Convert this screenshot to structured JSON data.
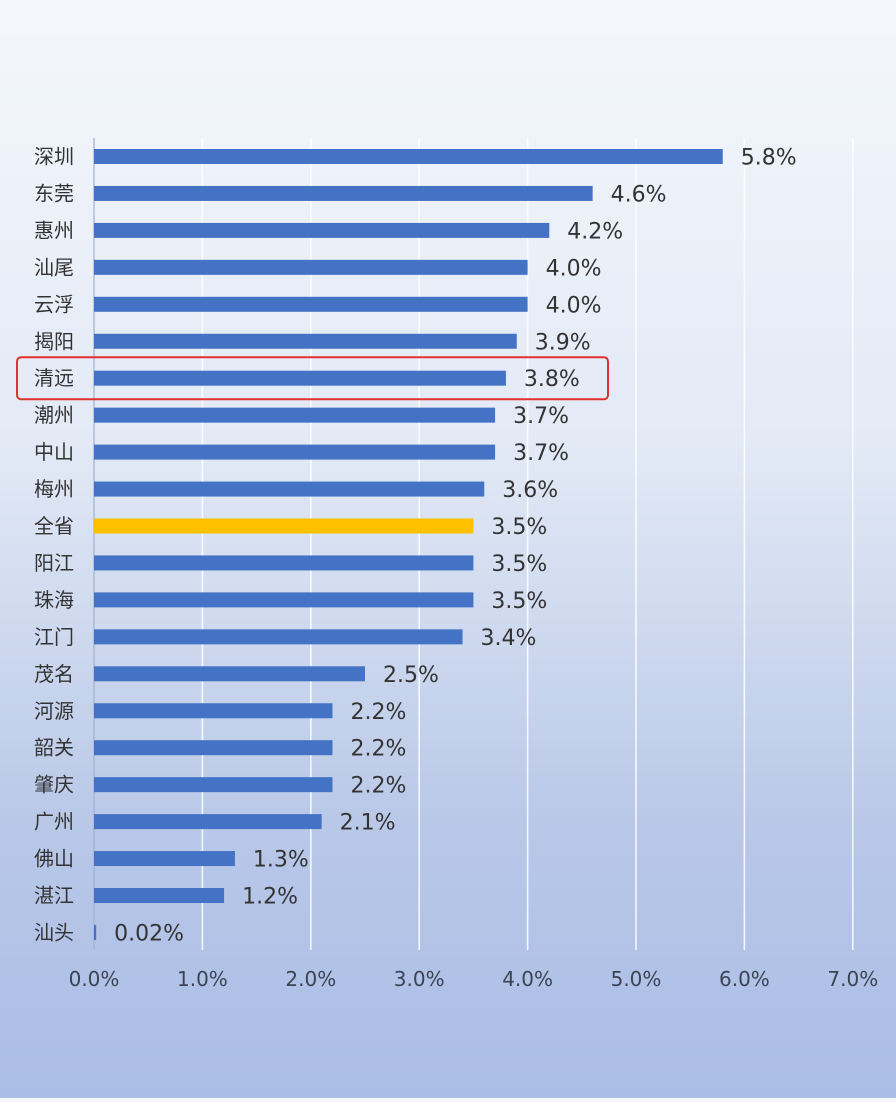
{
  "chart_data": {
    "type": "bar",
    "orientation": "horizontal",
    "categories": [
      "深圳",
      "东莞",
      "惠州",
      "汕尾",
      "云浮",
      "揭阳",
      "清远",
      "潮州",
      "中山",
      "梅州",
      "全省",
      "阳江",
      "珠海",
      "江门",
      "茂名",
      "河源",
      "韶关",
      "肇庆",
      "广州",
      "佛山",
      "湛江",
      "汕头"
    ],
    "values": [
      5.8,
      4.6,
      4.2,
      4.0,
      4.0,
      3.9,
      3.8,
      3.7,
      3.7,
      3.6,
      3.5,
      3.5,
      3.5,
      3.4,
      2.5,
      2.2,
      2.2,
      2.2,
      2.1,
      1.3,
      1.2,
      0.02
    ],
    "value_labels": [
      "5.8%",
      "4.6%",
      "4.2%",
      "4.0%",
      "4.0%",
      "3.9%",
      "3.8%",
      "3.7%",
      "3.7%",
      "3.6%",
      "3.5%",
      "3.5%",
      "3.5%",
      "3.4%",
      "2.5%",
      "2.2%",
      "2.2%",
      "2.2%",
      "2.1%",
      "1.3%",
      "1.2%",
      "0.02%"
    ],
    "x_ticks": [
      0,
      1,
      2,
      3,
      4,
      5,
      6,
      7
    ],
    "x_tick_labels": [
      "0.0%",
      "1.0%",
      "2.0%",
      "3.0%",
      "4.0%",
      "5.0%",
      "6.0%",
      "7.0%"
    ],
    "xlim": [
      0,
      7
    ],
    "grid": true,
    "title": "",
    "xlabel": "",
    "ylabel": "",
    "highlight": {
      "overall_category": "全省",
      "boxed_category": "清远"
    },
    "colors": {
      "bar": "#4472c4",
      "overall_bar": "#ffc000",
      "box": "#e03030",
      "gridline": "#ffffff",
      "text": "#333333"
    }
  }
}
